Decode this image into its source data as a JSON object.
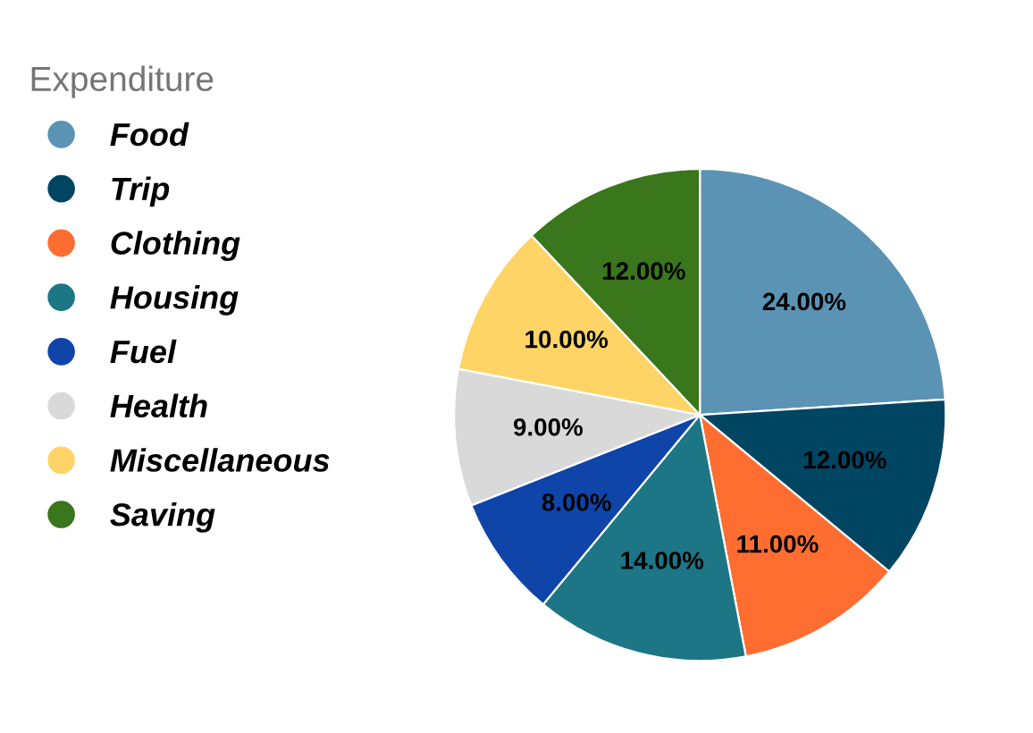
{
  "chart_data": {
    "type": "pie",
    "legend_title": "Expenditure",
    "legend": "left",
    "categories": [
      "Food",
      "Trip",
      "Clothing",
      "Housing",
      "Fuel",
      "Health",
      "Miscellaneous",
      "Saving"
    ],
    "values": [
      24,
      12,
      11,
      14,
      8,
      9,
      10,
      12
    ],
    "value_labels": [
      "24.00%",
      "12.00%",
      "11.00%",
      "14.00%",
      "8.00%",
      "9.00%",
      "10.00%",
      "12.00%"
    ],
    "colors": [
      "#5b93b5",
      "#004561",
      "#ff6d31",
      "#1c7685",
      "#0f45a8",
      "#d9d9d9",
      "#ffd466",
      "#3a761c"
    ]
  }
}
